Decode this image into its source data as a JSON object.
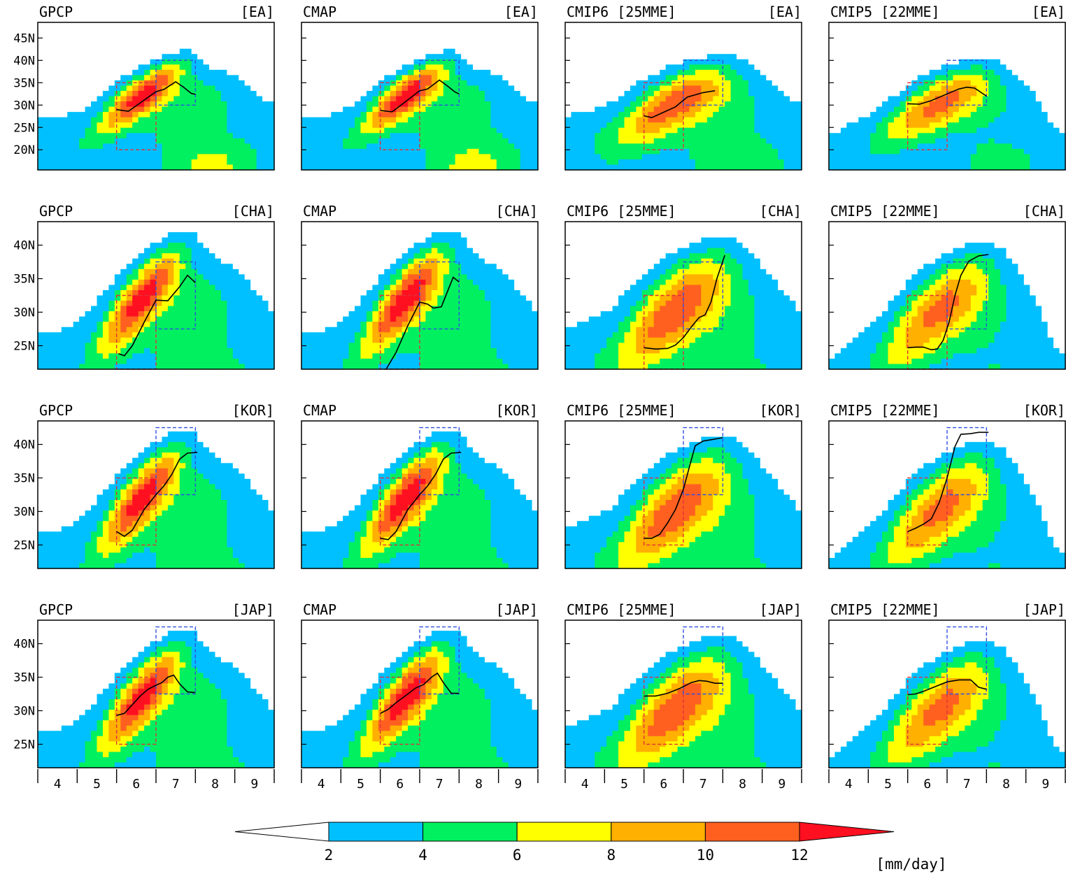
{
  "chart_data": {
    "type": "heatmap",
    "description_levels": [
      2,
      4,
      6,
      8,
      10,
      12
    ],
    "colorbar": {
      "tick_labels": [
        "2",
        "4",
        "6",
        "8",
        "10",
        "12"
      ],
      "unit_label": "[mm/day]",
      "colors": [
        "#ffffff",
        "#00c0ff",
        "#00f060",
        "#ffff00",
        "#ffb000",
        "#ff6020",
        "#ff1020"
      ]
    },
    "x_tick_labels": [
      "4",
      "5",
      "6",
      "7",
      "8",
      "9"
    ],
    "datasets": [
      "GPCP",
      "CMAP",
      "CMIP6 [25MME]",
      "CMIP5 [22MME]"
    ],
    "rows": [
      {
        "region": "[EA]",
        "y_tick_labels": [
          "45N",
          "40N",
          "35N",
          "30N",
          "25N",
          "20N"
        ],
        "ylim": [
          15.5,
          48.5
        ],
        "red_box": {
          "x": [
            5.5,
            6.5
          ],
          "y": [
            20,
            35
          ]
        },
        "blue_box": {
          "x": [
            6.5,
            7.5
          ],
          "y": [
            30,
            40
          ]
        },
        "panels": [
          {
            "front": [
              [
                5.5,
                29
              ],
              [
                5.8,
                28.6
              ],
              [
                6.1,
                30.5
              ],
              [
                6.5,
                33
              ],
              [
                6.7,
                33.5
              ],
              [
                7,
                35.2
              ],
              [
                7.2,
                34
              ],
              [
                7.4,
                32.6
              ],
              [
                7.5,
                32.4
              ]
            ]
          },
          {
            "front": [
              [
                5.5,
                28.8
              ],
              [
                5.8,
                28.5
              ],
              [
                6.1,
                30.5
              ],
              [
                6.5,
                33.2
              ],
              [
                6.7,
                33.6
              ],
              [
                7,
                35.6
              ],
              [
                7.2,
                34.3
              ],
              [
                7.4,
                32.9
              ],
              [
                7.5,
                32.5
              ]
            ]
          },
          {
            "front": [
              [
                5.5,
                27.6
              ],
              [
                5.7,
                27.2
              ],
              [
                6,
                28.4
              ],
              [
                6.3,
                29.6
              ],
              [
                6.6,
                31.8
              ],
              [
                7,
                32.8
              ],
              [
                7.3,
                33.2
              ]
            ]
          },
          {
            "front": [
              [
                5.5,
                30.3
              ],
              [
                5.8,
                30.2
              ],
              [
                6.1,
                31
              ],
              [
                6.5,
                32.5
              ],
              [
                6.8,
                33.6
              ],
              [
                7,
                34
              ],
              [
                7.2,
                33.8
              ],
              [
                7.5,
                32
              ]
            ]
          }
        ]
      },
      {
        "region": "[CHA]",
        "y_tick_labels": [
          "40N",
          "35N",
          "30N",
          "25N"
        ],
        "ylim": [
          21.5,
          43.5
        ],
        "red_box": {
          "x": [
            5.5,
            6.5
          ],
          "y": [
            21.5,
            32.5
          ]
        },
        "blue_box": {
          "x": [
            6.5,
            7.5
          ],
          "y": [
            27.5,
            37.5
          ]
        },
        "panels": [
          {
            "front": [
              [
                5.55,
                23.8
              ],
              [
                5.7,
                23.5
              ],
              [
                5.9,
                25
              ],
              [
                6.2,
                28.5
              ],
              [
                6.5,
                31.8
              ],
              [
                6.8,
                31.7
              ],
              [
                7.1,
                33.8
              ],
              [
                7.3,
                35.5
              ],
              [
                7.5,
                34.4
              ]
            ]
          },
          {
            "front": [
              [
                5.65,
                21.5
              ],
              [
                5.9,
                24
              ],
              [
                6.2,
                28
              ],
              [
                6.5,
                31.5
              ],
              [
                6.7,
                31.2
              ],
              [
                6.85,
                30.6
              ],
              [
                7.05,
                30.8
              ],
              [
                7.35,
                35.2
              ],
              [
                7.5,
                34.5
              ]
            ]
          },
          {
            "front": [
              [
                5.5,
                24.7
              ],
              [
                5.8,
                24.5
              ],
              [
                6.1,
                24.6
              ],
              [
                6.3,
                25.1
              ],
              [
                6.5,
                26.2
              ],
              [
                6.7,
                27.8
              ],
              [
                6.9,
                29.2
              ],
              [
                7.05,
                29.6
              ],
              [
                7.2,
                31.5
              ],
              [
                7.35,
                35
              ],
              [
                7.55,
                38.5
              ]
            ]
          },
          {
            "front": [
              [
                5.5,
                24.7
              ],
              [
                5.7,
                24.8
              ],
              [
                5.9,
                24.8
              ],
              [
                6.1,
                24.4
              ],
              [
                6.25,
                24.5
              ],
              [
                6.4,
                25.8
              ],
              [
                6.55,
                28.5
              ],
              [
                6.7,
                32.5
              ],
              [
                6.85,
                35.5
              ],
              [
                7.05,
                37.6
              ],
              [
                7.3,
                38.4
              ],
              [
                7.55,
                38.6
              ]
            ]
          }
        ]
      },
      {
        "region": "[KOR]",
        "y_tick_labels": [
          "40N",
          "35N",
          "30N",
          "25N"
        ],
        "ylim": [
          21.5,
          43.5
        ],
        "red_box": {
          "x": [
            5.5,
            6.5
          ],
          "y": [
            25,
            35
          ]
        },
        "blue_box": {
          "x": [
            6.5,
            7.5
          ],
          "y": [
            32.5,
            42.5
          ]
        },
        "panels": [
          {
            "front": [
              [
                5.5,
                27
              ],
              [
                5.7,
                26.3
              ],
              [
                5.9,
                27.2
              ],
              [
                6.2,
                30.3
              ],
              [
                6.5,
                32.5
              ],
              [
                6.7,
                33.8
              ],
              [
                6.9,
                35.5
              ],
              [
                7.1,
                37.8
              ],
              [
                7.3,
                38.7
              ],
              [
                7.55,
                38.8
              ]
            ]
          },
          {
            "front": [
              [
                5.5,
                26
              ],
              [
                5.7,
                25.8
              ],
              [
                5.9,
                27
              ],
              [
                6.2,
                30.3
              ],
              [
                6.5,
                32.5
              ],
              [
                6.7,
                33.8
              ],
              [
                6.9,
                35.5
              ],
              [
                7.1,
                37.8
              ],
              [
                7.3,
                38.7
              ],
              [
                7.55,
                38.8
              ]
            ]
          },
          {
            "front": [
              [
                5.5,
                26
              ],
              [
                5.7,
                26
              ],
              [
                5.9,
                26.6
              ],
              [
                6.1,
                28.3
              ],
              [
                6.3,
                30.3
              ],
              [
                6.5,
                33.3
              ],
              [
                6.65,
                36.6
              ],
              [
                6.8,
                39.8
              ],
              [
                7,
                40.5
              ],
              [
                7.2,
                40.7
              ],
              [
                7.5,
                41
              ]
            ]
          },
          {
            "front": [
              [
                5.5,
                27
              ],
              [
                5.7,
                27.5
              ],
              [
                5.9,
                28.1
              ],
              [
                6.1,
                28.9
              ],
              [
                6.3,
                31.3
              ],
              [
                6.5,
                35
              ],
              [
                6.7,
                39.7
              ],
              [
                6.85,
                41.5
              ],
              [
                7.1,
                41.6
              ],
              [
                7.3,
                41.8
              ],
              [
                7.55,
                41.8
              ]
            ]
          }
        ]
      },
      {
        "region": "[JAP]",
        "y_tick_labels": [
          "40N",
          "35N",
          "30N",
          "25N"
        ],
        "ylim": [
          21.5,
          43.5
        ],
        "red_box": {
          "x": [
            5.5,
            6.5
          ],
          "y": [
            25,
            35
          ]
        },
        "blue_box": {
          "x": [
            6.5,
            7.5
          ],
          "y": [
            32.5,
            42.5
          ]
        },
        "panels": [
          {
            "front": [
              [
                5.5,
                29.3
              ],
              [
                5.7,
                29.6
              ],
              [
                5.9,
                30.9
              ],
              [
                6.1,
                32.2
              ],
              [
                6.3,
                33.2
              ],
              [
                6.5,
                33.8
              ],
              [
                6.65,
                34.2
              ],
              [
                6.8,
                35
              ],
              [
                6.95,
                35.3
              ],
              [
                7.1,
                34
              ],
              [
                7.3,
                32.8
              ],
              [
                7.5,
                32.7
              ]
            ]
          },
          {
            "front": [
              [
                5.5,
                29.6
              ],
              [
                5.7,
                30.2
              ],
              [
                5.9,
                31.2
              ],
              [
                6.2,
                32.5
              ],
              [
                6.4,
                33.4
              ],
              [
                6.6,
                33.9
              ],
              [
                6.8,
                35
              ],
              [
                6.95,
                35.6
              ],
              [
                7.1,
                34.2
              ],
              [
                7.3,
                32.6
              ],
              [
                7.5,
                32.6
              ]
            ]
          },
          {
            "front": [
              [
                5.5,
                32.2
              ],
              [
                5.8,
                32.2
              ],
              [
                6.1,
                32.6
              ],
              [
                6.4,
                33.3
              ],
              [
                6.7,
                34.2
              ],
              [
                6.9,
                34.5
              ],
              [
                7.1,
                34.4
              ],
              [
                7.3,
                34.1
              ],
              [
                7.5,
                34.1
              ]
            ]
          },
          {
            "front": [
              [
                5.5,
                32.4
              ],
              [
                5.7,
                32.5
              ],
              [
                5.9,
                32.9
              ],
              [
                6.2,
                33.6
              ],
              [
                6.5,
                34.3
              ],
              [
                6.8,
                34.6
              ],
              [
                7.1,
                34.6
              ],
              [
                7.3,
                33.5
              ],
              [
                7.5,
                33.2
              ]
            ]
          }
        ]
      }
    ]
  }
}
